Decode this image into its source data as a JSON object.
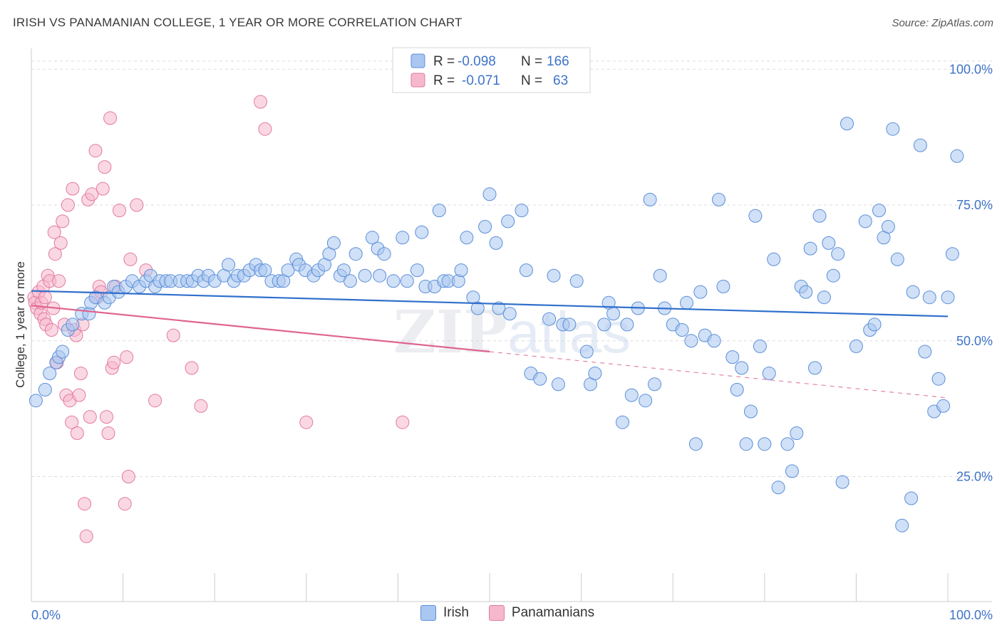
{
  "header": {
    "title": "IRISH VS PANAMANIAN COLLEGE, 1 YEAR OR MORE CORRELATION CHART",
    "source": "Source: ZipAtlas.com"
  },
  "legend_box": {
    "rows": [
      {
        "r_label": "R =",
        "r_value": "-0.098",
        "n_label": "N =",
        "n_value": "166"
      },
      {
        "r_label": "R =",
        "r_value": "-0.071",
        "n_label": "N =",
        "n_value": "63"
      }
    ]
  },
  "watermark": {
    "part1": "ZIP",
    "part2": "atlas"
  },
  "colors": {
    "irish_fill": "#a9c7f0",
    "irish_stroke": "#5b8fd8",
    "irish_line": "#2f6fcc",
    "panamanian_fill": "#f6b8cc",
    "panamanian_stroke": "#e27aa0",
    "panamanian_line": "#e0648f",
    "axis_text": "#3f73c8",
    "grid": "#dddddd"
  },
  "chart_data": {
    "type": "scatter",
    "xlabel": "",
    "ylabel": "College, 1 year or more",
    "xlim": [
      0,
      100
    ],
    "ylim": [
      2,
      102
    ],
    "x_tick_labels": [
      "0.0%",
      "100.0%"
    ],
    "y_ticks": [
      25,
      50,
      75,
      100
    ],
    "y_tick_labels": [
      "25.0%",
      "50.0%",
      "75.0%",
      "100.0%"
    ],
    "grid": "horizontal-dashed",
    "legend": "top-center and bottom",
    "series": [
      {
        "name": "Irish",
        "trend": {
          "x0": 0,
          "y0": 59.2,
          "x1": 100,
          "y1": 54.5,
          "solid_to": 100
        },
        "points": [
          [
            0.5,
            39
          ],
          [
            1.5,
            41
          ],
          [
            2,
            44
          ],
          [
            2.7,
            46
          ],
          [
            3,
            47
          ],
          [
            3.4,
            48
          ],
          [
            4,
            52
          ],
          [
            4.5,
            53
          ],
          [
            5.5,
            55
          ],
          [
            6.3,
            55
          ],
          [
            6.5,
            57
          ],
          [
            7,
            58
          ],
          [
            8,
            57
          ],
          [
            8.5,
            58
          ],
          [
            9,
            60
          ],
          [
            9.5,
            59
          ],
          [
            10.3,
            60
          ],
          [
            11,
            61
          ],
          [
            11.8,
            60
          ],
          [
            12.5,
            61
          ],
          [
            13,
            62
          ],
          [
            13.5,
            60
          ],
          [
            14,
            61
          ],
          [
            14.7,
            61
          ],
          [
            15.2,
            61
          ],
          [
            16.2,
            61
          ],
          [
            17,
            61
          ],
          [
            17.6,
            61
          ],
          [
            18.2,
            62
          ],
          [
            18.8,
            61
          ],
          [
            19.3,
            62
          ],
          [
            20,
            61
          ],
          [
            21,
            62
          ],
          [
            21.5,
            64
          ],
          [
            22.1,
            61
          ],
          [
            22.5,
            62
          ],
          [
            23.2,
            62
          ],
          [
            23.8,
            63
          ],
          [
            24.5,
            64
          ],
          [
            25,
            63
          ],
          [
            25.5,
            63
          ],
          [
            26.2,
            61
          ],
          [
            27,
            61
          ],
          [
            27.5,
            61
          ],
          [
            28,
            63
          ],
          [
            28.9,
            65
          ],
          [
            29.2,
            64
          ],
          [
            29.9,
            63
          ],
          [
            30.8,
            62
          ],
          [
            31.3,
            63
          ],
          [
            32,
            64
          ],
          [
            32.5,
            66
          ],
          [
            33,
            68
          ],
          [
            33.7,
            62
          ],
          [
            34.1,
            63
          ],
          [
            34.8,
            61
          ],
          [
            35.4,
            66
          ],
          [
            36.4,
            62
          ],
          [
            37.2,
            69
          ],
          [
            37.8,
            67
          ],
          [
            38,
            62
          ],
          [
            38.5,
            66
          ],
          [
            39.5,
            61
          ],
          [
            40.5,
            69
          ],
          [
            41,
            61
          ],
          [
            42.1,
            63
          ],
          [
            42.6,
            70
          ],
          [
            43,
            60
          ],
          [
            44,
            60
          ],
          [
            44.5,
            74
          ],
          [
            45,
            61
          ],
          [
            45.5,
            61
          ],
          [
            46.6,
            61
          ],
          [
            46.9,
            63
          ],
          [
            47.5,
            69
          ],
          [
            48.2,
            58
          ],
          [
            48.7,
            56
          ],
          [
            49.5,
            71
          ],
          [
            50,
            77
          ],
          [
            50.7,
            68
          ],
          [
            51,
            56
          ],
          [
            52,
            72
          ],
          [
            52.2,
            55
          ],
          [
            53.5,
            74
          ],
          [
            54,
            63
          ],
          [
            54.5,
            44
          ],
          [
            55.5,
            43
          ],
          [
            56.5,
            54
          ],
          [
            57,
            62
          ],
          [
            57.5,
            42
          ],
          [
            58,
            53
          ],
          [
            58.7,
            53
          ],
          [
            59.5,
            61
          ],
          [
            60.6,
            48
          ],
          [
            61,
            42
          ],
          [
            61.5,
            44
          ],
          [
            62.5,
            53
          ],
          [
            63,
            57
          ],
          [
            63.5,
            55
          ],
          [
            64.5,
            35
          ],
          [
            65,
            53
          ],
          [
            65.5,
            40
          ],
          [
            66.2,
            56
          ],
          [
            67,
            39
          ],
          [
            67.5,
            76
          ],
          [
            68,
            42
          ],
          [
            68.6,
            62
          ],
          [
            69.1,
            56
          ],
          [
            70,
            53
          ],
          [
            71,
            52
          ],
          [
            71.5,
            57
          ],
          [
            72,
            50
          ],
          [
            72.5,
            31
          ],
          [
            73,
            59
          ],
          [
            73.5,
            51
          ],
          [
            74.5,
            50
          ],
          [
            75,
            76
          ],
          [
            75.5,
            60
          ],
          [
            76.5,
            47
          ],
          [
            77,
            41
          ],
          [
            77.5,
            45
          ],
          [
            78,
            31
          ],
          [
            78.5,
            37
          ],
          [
            79,
            73
          ],
          [
            79.5,
            49
          ],
          [
            80,
            31
          ],
          [
            80.5,
            44
          ],
          [
            81,
            65
          ],
          [
            81.5,
            23
          ],
          [
            82.5,
            31
          ],
          [
            83,
            26
          ],
          [
            83.5,
            33
          ],
          [
            84,
            60
          ],
          [
            84.5,
            59
          ],
          [
            85,
            67
          ],
          [
            85.5,
            45
          ],
          [
            86,
            73
          ],
          [
            86.5,
            58
          ],
          [
            87,
            68
          ],
          [
            87.5,
            62
          ],
          [
            88,
            66
          ],
          [
            88.5,
            24
          ],
          [
            89,
            90
          ],
          [
            90,
            49
          ],
          [
            91,
            72
          ],
          [
            91.5,
            52
          ],
          [
            92,
            53
          ],
          [
            92.5,
            74
          ],
          [
            93,
            69
          ],
          [
            93.5,
            71
          ],
          [
            94,
            89
          ],
          [
            94.5,
            65
          ],
          [
            95,
            16
          ],
          [
            96,
            21
          ],
          [
            96.2,
            59
          ],
          [
            97,
            86
          ],
          [
            97.5,
            48
          ],
          [
            98,
            58
          ],
          [
            98.5,
            37
          ],
          [
            99,
            43
          ],
          [
            99.5,
            38
          ],
          [
            100,
            58
          ],
          [
            100.5,
            66
          ],
          [
            101,
            84
          ]
        ]
      },
      {
        "name": "Panamanians",
        "trend": {
          "x0": 0,
          "y0": 56.5,
          "x1": 100,
          "y1": 39.5,
          "solid_to": 50
        },
        "points": [
          [
            0.3,
            58
          ],
          [
            0.4,
            57
          ],
          [
            0.6,
            56
          ],
          [
            0.8,
            59
          ],
          [
            1.0,
            55
          ],
          [
            1.1,
            57
          ],
          [
            1.3,
            60
          ],
          [
            1.4,
            54
          ],
          [
            1.5,
            58
          ],
          [
            1.6,
            53
          ],
          [
            1.8,
            62
          ],
          [
            2.0,
            61
          ],
          [
            2.2,
            52
          ],
          [
            2.4,
            56
          ],
          [
            2.5,
            70
          ],
          [
            2.6,
            66
          ],
          [
            2.8,
            46
          ],
          [
            3.0,
            61
          ],
          [
            3.2,
            68
          ],
          [
            3.4,
            72
          ],
          [
            3.6,
            53
          ],
          [
            3.8,
            40
          ],
          [
            4.0,
            75
          ],
          [
            4.2,
            39
          ],
          [
            4.4,
            35
          ],
          [
            4.5,
            78
          ],
          [
            4.7,
            52
          ],
          [
            4.9,
            51
          ],
          [
            5.0,
            33
          ],
          [
            5.2,
            40
          ],
          [
            5.4,
            44
          ],
          [
            5.6,
            53
          ],
          [
            5.8,
            20
          ],
          [
            6.0,
            14
          ],
          [
            6.2,
            76
          ],
          [
            6.4,
            36
          ],
          [
            6.6,
            77
          ],
          [
            7.0,
            85
          ],
          [
            7.2,
            58
          ],
          [
            7.4,
            60
          ],
          [
            7.6,
            59
          ],
          [
            7.8,
            78
          ],
          [
            8.0,
            82
          ],
          [
            8.2,
            36
          ],
          [
            8.4,
            33
          ],
          [
            8.6,
            91
          ],
          [
            8.8,
            45
          ],
          [
            9.0,
            46
          ],
          [
            9.2,
            60
          ],
          [
            9.6,
            74
          ],
          [
            10.2,
            20
          ],
          [
            10.4,
            47
          ],
          [
            10.6,
            25
          ],
          [
            10.8,
            65
          ],
          [
            11.5,
            75
          ],
          [
            12.5,
            63
          ],
          [
            13.5,
            39
          ],
          [
            15.5,
            51
          ],
          [
            17.5,
            45
          ],
          [
            18.5,
            38
          ],
          [
            25,
            94
          ],
          [
            25.5,
            89
          ],
          [
            30,
            35
          ],
          [
            40.5,
            35
          ]
        ]
      }
    ]
  }
}
